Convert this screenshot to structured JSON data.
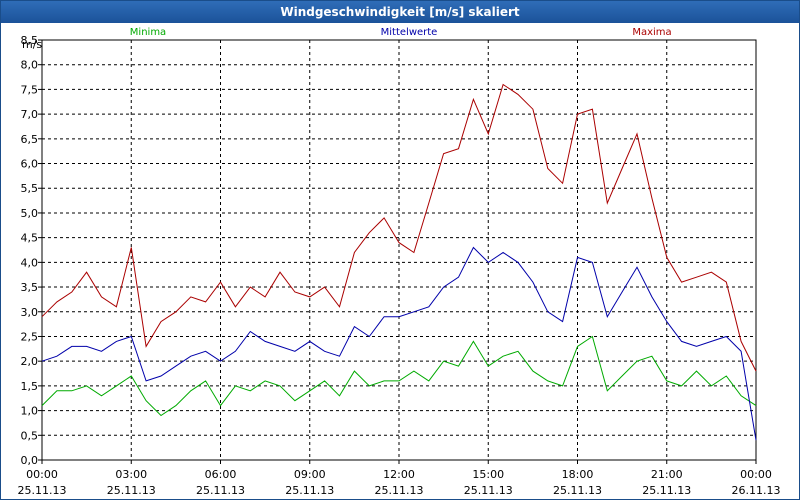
{
  "chart_data": {
    "type": "line",
    "title": "Windgeschwindigkeit [m/s] skaliert",
    "ylabel": "m/s",
    "ylim": [
      0,
      8.5
    ],
    "yticks": [
      "0,0",
      "0,5",
      "1,0",
      "1,5",
      "2,0",
      "2,5",
      "3,0",
      "3,5",
      "4,0",
      "4,5",
      "5,0",
      "5,5",
      "6,0",
      "6,5",
      "7,0",
      "7,5",
      "8,0",
      "8,5"
    ],
    "xlim": [
      0,
      24
    ],
    "xticks": [
      {
        "time": "00:00",
        "date": "25.11.13"
      },
      {
        "time": "03:00",
        "date": "25.11.13"
      },
      {
        "time": "06:00",
        "date": "25.11.13"
      },
      {
        "time": "09:00",
        "date": "25.11.13"
      },
      {
        "time": "12:00",
        "date": "25.11.13"
      },
      {
        "time": "15:00",
        "date": "25.11.13"
      },
      {
        "time": "18:00",
        "date": "25.11.13"
      },
      {
        "time": "21:00",
        "date": "25.11.13"
      },
      {
        "time": "00:00",
        "date": "26.11.13"
      }
    ],
    "grid": true,
    "series": [
      {
        "name": "Minima",
        "color": "#00aa00",
        "x": [
          0,
          0.5,
          1,
          1.5,
          2,
          2.5,
          3,
          3.5,
          4,
          4.5,
          5,
          5.5,
          6,
          6.5,
          7,
          7.5,
          8,
          8.5,
          9,
          9.5,
          10,
          10.5,
          11,
          11.5,
          12,
          12.5,
          13,
          13.5,
          14,
          14.5,
          15,
          15.5,
          16,
          16.5,
          17,
          17.5,
          18,
          18.5,
          19,
          19.5,
          20,
          20.5,
          21,
          21.5,
          22,
          22.5,
          23,
          23.5,
          24
        ],
        "values": [
          1.1,
          1.4,
          1.4,
          1.5,
          1.3,
          1.5,
          1.7,
          1.2,
          0.9,
          1.1,
          1.4,
          1.6,
          1.1,
          1.5,
          1.4,
          1.6,
          1.5,
          1.2,
          1.4,
          1.6,
          1.3,
          1.8,
          1.5,
          1.6,
          1.6,
          1.8,
          1.6,
          2.0,
          1.9,
          2.4,
          1.9,
          2.1,
          2.2,
          1.8,
          1.6,
          1.5,
          2.3,
          2.5,
          1.4,
          1.7,
          2.0,
          2.1,
          1.6,
          1.5,
          1.8,
          1.5,
          1.7,
          1.3,
          1.1
        ]
      },
      {
        "name": "Mittelwerte",
        "color": "#0000aa",
        "x": [
          0,
          0.5,
          1,
          1.5,
          2,
          2.5,
          3,
          3.5,
          4,
          4.5,
          5,
          5.5,
          6,
          6.5,
          7,
          7.5,
          8,
          8.5,
          9,
          9.5,
          10,
          10.5,
          11,
          11.5,
          12,
          12.5,
          13,
          13.5,
          14,
          14.5,
          15,
          15.5,
          16,
          16.5,
          17,
          17.5,
          18,
          18.5,
          19,
          19.5,
          20,
          20.5,
          21,
          21.5,
          22,
          22.5,
          23,
          23.5,
          24
        ],
        "values": [
          2.0,
          2.1,
          2.3,
          2.3,
          2.2,
          2.4,
          2.5,
          1.6,
          1.7,
          1.9,
          2.1,
          2.2,
          2.0,
          2.2,
          2.6,
          2.4,
          2.3,
          2.2,
          2.4,
          2.2,
          2.1,
          2.7,
          2.5,
          2.9,
          2.9,
          3.0,
          3.1,
          3.5,
          3.7,
          4.3,
          4.0,
          4.2,
          4.0,
          3.6,
          3.0,
          2.8,
          4.1,
          4.0,
          2.9,
          3.4,
          3.9,
          3.3,
          2.8,
          2.4,
          2.3,
          2.4,
          2.5,
          2.2,
          0.4
        ]
      },
      {
        "name": "Maxima",
        "color": "#aa0000",
        "x": [
          0,
          0.5,
          1,
          1.5,
          2,
          2.5,
          3,
          3.5,
          4,
          4.5,
          5,
          5.5,
          6,
          6.5,
          7,
          7.5,
          8,
          8.5,
          9,
          9.5,
          10,
          10.5,
          11,
          11.5,
          12,
          12.5,
          13,
          13.5,
          14,
          14.5,
          15,
          15.5,
          16,
          16.5,
          17,
          17.5,
          18,
          18.5,
          19,
          19.5,
          20,
          20.5,
          21,
          21.5,
          22,
          22.5,
          23,
          23.5,
          24
        ],
        "values": [
          2.9,
          3.2,
          3.4,
          3.8,
          3.3,
          3.1,
          4.3,
          2.3,
          2.8,
          3.0,
          3.3,
          3.2,
          3.6,
          3.1,
          3.5,
          3.3,
          3.8,
          3.4,
          3.3,
          3.5,
          3.1,
          4.2,
          4.6,
          4.9,
          4.4,
          4.2,
          5.2,
          6.2,
          6.3,
          7.3,
          6.6,
          7.6,
          7.4,
          7.1,
          5.9,
          5.6,
          7.0,
          7.1,
          5.2,
          5.9,
          6.6,
          5.3,
          4.1,
          3.6,
          3.7,
          3.8,
          3.6,
          2.4,
          1.8
        ]
      }
    ]
  }
}
